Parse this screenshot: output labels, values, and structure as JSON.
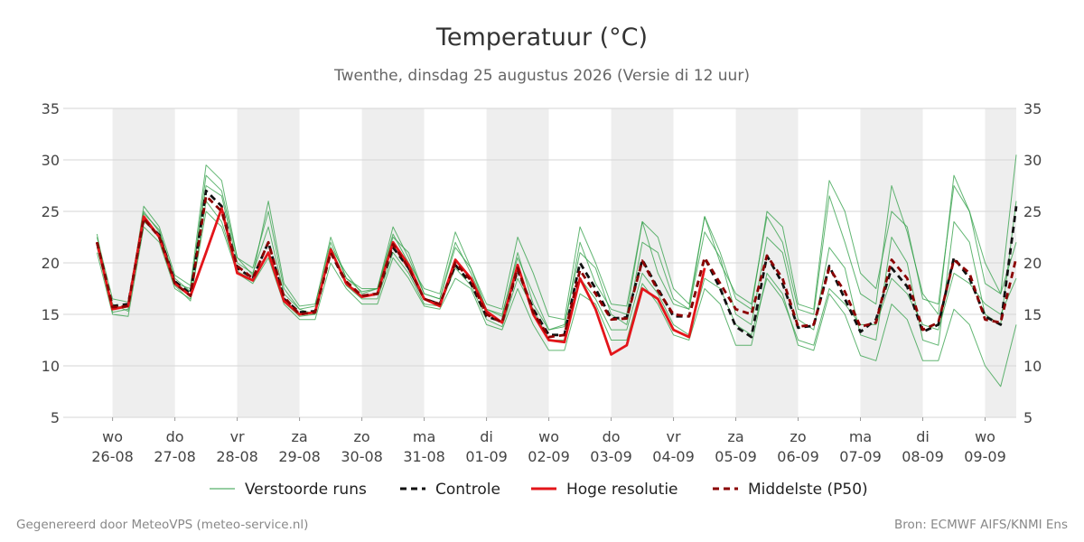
{
  "chart_data": {
    "type": "line",
    "title": "Temperatuur (°C)",
    "subtitle": "Twenthe, dinsdag 25 augustus 2026 (Versie di 12 uur)",
    "footer_left": "Gegenereerd door MeteoVPS (meteo-service.nl)",
    "footer_right": "Bron: ECMWF AIFS/KNMI Ens",
    "x": [
      -6,
      0,
      6,
      12,
      18,
      24,
      30,
      36,
      42,
      48,
      54,
      60,
      66,
      72,
      78,
      84,
      90,
      96,
      102,
      108,
      114,
      120,
      126,
      132,
      138,
      144,
      150,
      156,
      162,
      168,
      174,
      180,
      186,
      192,
      198,
      204,
      210,
      216,
      222,
      228,
      234,
      240,
      246,
      252,
      258,
      264,
      270,
      276,
      282,
      288,
      294,
      300,
      306,
      312,
      318,
      324,
      330,
      336,
      342,
      348
    ],
    "xlim": [
      -19,
      348
    ],
    "xticks": [
      {
        "value": 0,
        "label": [
          "wo",
          "26-08"
        ]
      },
      {
        "value": 24,
        "label": [
          "do",
          "27-08"
        ]
      },
      {
        "value": 48,
        "label": [
          "vr",
          "28-08"
        ]
      },
      {
        "value": 72,
        "label": [
          "za",
          "29-08"
        ]
      },
      {
        "value": 96,
        "label": [
          "zo",
          "30-08"
        ]
      },
      {
        "value": 120,
        "label": [
          "ma",
          "31-08"
        ]
      },
      {
        "value": 144,
        "label": [
          "di",
          "01-09"
        ]
      },
      {
        "value": 168,
        "label": [
          "wo",
          "02-09"
        ]
      },
      {
        "value": 192,
        "label": [
          "do",
          "03-09"
        ]
      },
      {
        "value": 216,
        "label": [
          "vr",
          "04-09"
        ]
      },
      {
        "value": 240,
        "label": [
          "za",
          "05-09"
        ]
      },
      {
        "value": 264,
        "label": [
          "zo",
          "06-09"
        ]
      },
      {
        "value": 288,
        "label": [
          "ma",
          "07-09"
        ]
      },
      {
        "value": 312,
        "label": [
          "di",
          "08-09"
        ]
      },
      {
        "value": 336,
        "label": [
          "wo",
          "09-09"
        ]
      }
    ],
    "ylim": [
      5,
      35
    ],
    "yticks": [
      5,
      10,
      15,
      20,
      25,
      30,
      35
    ],
    "y2lim": [
      5,
      35
    ],
    "y2ticks": [
      5,
      10,
      15,
      20,
      25,
      30,
      35
    ],
    "grid": true,
    "legend": "bottom",
    "series": [
      {
        "name": "Verstoorde runs",
        "color": "#2e9e44",
        "members": [
          [
            22.5,
            16.5,
            16.2,
            25,
            23,
            18.5,
            17.2,
            28.5,
            27,
            20.5,
            19.5,
            25,
            17.5,
            15.5,
            15.8,
            22.5,
            18.5,
            17.5,
            17.5,
            23.5,
            20.5,
            17,
            16.5,
            22,
            19,
            15.5,
            14.8,
            21,
            16,
            13.5,
            13.8,
            22,
            18,
            15.5,
            15,
            24,
            19,
            16,
            15.5,
            24.5,
            20,
            17,
            16,
            24.5,
            22,
            15.5,
            15,
            26.5,
            22,
            17,
            16,
            27.5,
            23,
            17,
            15,
            28.5,
            25,
            20,
            17,
            30.5
          ],
          [
            21,
            15,
            14.8,
            23.5,
            22,
            17.5,
            16.5,
            25,
            23.5,
            19,
            18,
            20.5,
            16,
            14.5,
            14.5,
            20,
            17.5,
            16,
            16,
            20.5,
            18.5,
            15.8,
            15.5,
            18.5,
            17.5,
            14,
            13.5,
            17.5,
            14,
            11.5,
            11.5,
            17,
            16,
            12.5,
            12.5,
            18,
            16,
            13,
            12.5,
            17.5,
            16,
            12,
            12,
            19,
            17,
            12,
            11.5,
            17,
            15,
            11,
            10.5,
            16,
            14.5,
            10.5,
            10.5,
            15.5,
            14,
            10,
            8,
            14
          ],
          [
            22,
            15.5,
            16,
            24.8,
            23.2,
            18,
            17.5,
            27.5,
            26.5,
            20,
            19,
            23.5,
            17,
            15.5,
            15,
            21.5,
            19,
            17,
            17.5,
            22.5,
            21,
            17,
            16.5,
            21.5,
            19.5,
            15.5,
            15,
            20.5,
            17,
            13.5,
            14,
            21,
            19.5,
            15,
            14,
            22,
            21,
            16.5,
            15.5,
            23,
            20.5,
            15,
            14,
            22.5,
            21,
            14.5,
            13.5,
            21.5,
            19.5,
            13,
            12.5,
            22.5,
            20,
            12.5,
            12,
            24,
            22,
            15,
            14,
            26
          ],
          [
            21.5,
            16,
            15.3,
            24,
            22.8,
            17.8,
            16.3,
            26,
            24,
            19.2,
            18.3,
            21,
            16.2,
            14.8,
            15,
            21.5,
            17.8,
            16.5,
            16.5,
            21,
            19,
            16,
            15.8,
            19.5,
            17.8,
            14.5,
            13.8,
            18.5,
            15.5,
            12.5,
            12.5,
            18.5,
            16.5,
            13.5,
            13.5,
            19,
            17,
            14,
            13,
            18.5,
            17.5,
            14,
            13,
            18.5,
            16.5,
            12.5,
            12,
            17.5,
            16,
            14,
            14,
            18.5,
            17,
            14,
            13.5,
            19,
            18,
            16,
            15,
            18.5
          ],
          [
            22.8,
            15.2,
            15.5,
            25.5,
            23.5,
            18.8,
            17.8,
            29.5,
            28,
            20.5,
            18.8,
            26,
            18,
            15.8,
            16,
            22,
            18.5,
            17.2,
            17.5,
            22.8,
            20,
            17.5,
            17,
            23,
            19.5,
            16,
            15.5,
            22.5,
            19,
            14.8,
            14.5,
            23.5,
            20,
            16,
            15.8,
            24,
            22.5,
            17.5,
            16,
            24.5,
            21,
            16.5,
            15.5,
            25,
            23.5,
            16,
            15.5,
            28,
            25,
            19,
            17.5,
            25,
            23.5,
            16.5,
            16,
            27.5,
            25,
            18,
            17,
            22
          ]
        ]
      },
      {
        "name": "Controle",
        "color": "#111111",
        "dashed": true,
        "values": [
          22,
          15.8,
          16,
          24.2,
          22.7,
          18.2,
          17,
          27,
          25.5,
          19.5,
          18.5,
          22,
          16.5,
          15.2,
          15.3,
          21,
          18,
          16.8,
          17,
          21.5,
          19.5,
          16.5,
          16,
          19.8,
          18,
          14.8,
          14.3,
          19.3,
          15.5,
          13,
          13,
          20,
          17.5,
          14.6,
          14.7,
          20.3,
          17.5,
          14.8,
          14.8,
          20.5,
          17.5,
          13.8,
          12.8,
          20.7,
          18,
          13.7,
          13.9,
          19.7,
          16.5,
          13.3,
          14.5,
          19.5,
          17.7,
          13.3,
          14,
          20.5,
          18.5,
          14.8,
          14,
          25.5
        ]
      },
      {
        "name": "Hoge resolutie",
        "color": "#e3151a",
        "dashed": false,
        "values": [
          22,
          15.5,
          15.8,
          24.5,
          22.5,
          18,
          16.8,
          21,
          25.3,
          19,
          18.3,
          21,
          16.3,
          15,
          15.2,
          21.3,
          18,
          16.7,
          17,
          22,
          19.8,
          16.5,
          15.8,
          20.3,
          18.5,
          15.3,
          14.2,
          19.8,
          15,
          12.5,
          12.3,
          18.5,
          15.5,
          11.1,
          12,
          17.5,
          16.5,
          13.5,
          12.8,
          19.5,
          null,
          null,
          null,
          null,
          null,
          null,
          null,
          null,
          null,
          null,
          null,
          null,
          null,
          null,
          null,
          null,
          null,
          null,
          null,
          null
        ]
      },
      {
        "name": "Middelste (P50)",
        "color": "#8b0000",
        "dashed": true,
        "values": [
          22,
          15.7,
          15.8,
          24.3,
          22.5,
          18,
          16.8,
          26.5,
          25,
          19.7,
          18.5,
          22,
          16.7,
          15,
          15.2,
          21,
          18.2,
          16.8,
          17,
          21.8,
          19.5,
          16.5,
          16,
          20,
          18.3,
          15,
          14.2,
          19.5,
          15.2,
          12.8,
          13,
          19.3,
          17,
          14.5,
          14.6,
          20.2,
          17.3,
          15,
          14.8,
          20.5,
          18,
          15.5,
          15,
          20.7,
          18.5,
          13.8,
          14,
          19.5,
          17.2,
          13.8,
          14.2,
          20.3,
          18.5,
          13.5,
          14.2,
          20.3,
          19,
          14.5,
          14.2,
          20.5
        ]
      }
    ]
  }
}
